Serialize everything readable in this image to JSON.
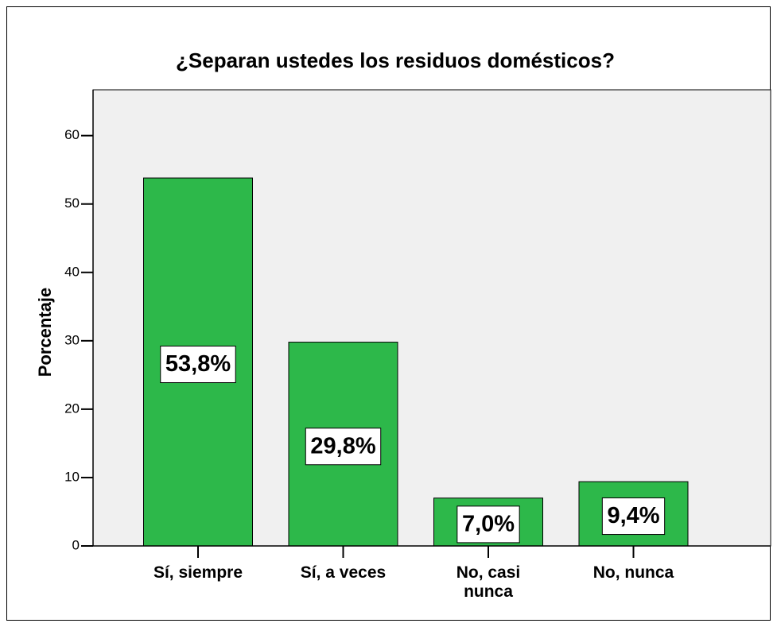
{
  "chart_data": {
    "type": "bar",
    "title": "¿Separan ustedes los residuos domésticos?",
    "y_label": "Porcentaje",
    "categories": [
      "Sí, siempre",
      "Sí, a veces",
      "No, casi nunca",
      "No, nunca"
    ],
    "values": [
      53.8,
      29.8,
      7.0,
      9.4
    ],
    "value_labels": [
      "53,8%",
      "29,8%",
      "7,0%",
      "9,4%"
    ],
    "color": "#2db84a",
    "ylim": [
      0,
      66.7
    ],
    "yticks": [
      0,
      10,
      20,
      30,
      40,
      50,
      60
    ],
    "grid": false
  }
}
